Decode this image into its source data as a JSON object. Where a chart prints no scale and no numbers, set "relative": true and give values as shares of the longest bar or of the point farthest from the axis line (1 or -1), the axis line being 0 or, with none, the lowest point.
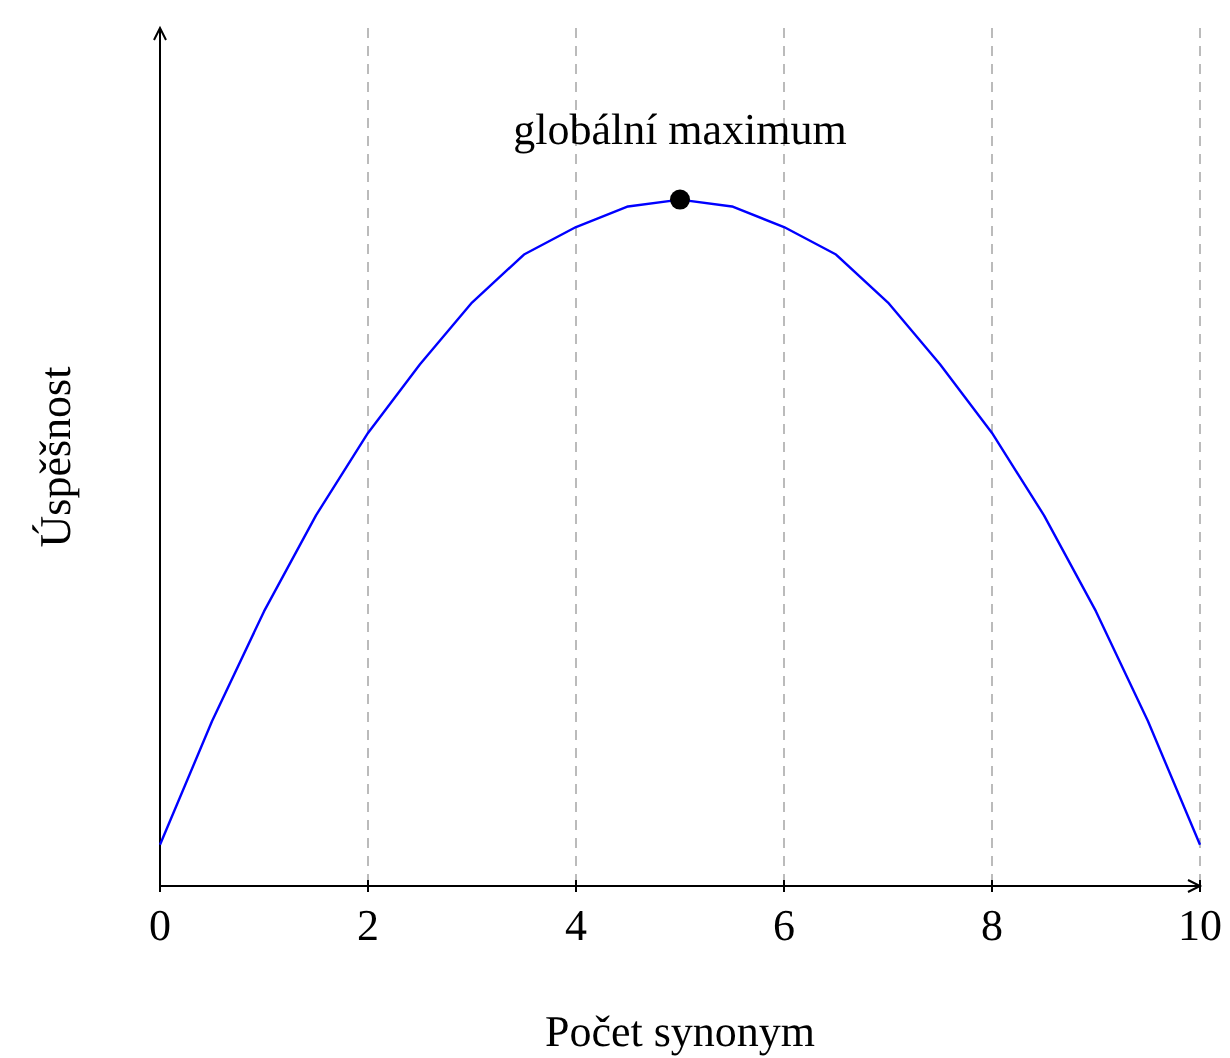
{
  "chart_data": {
    "type": "line",
    "xlabel": "Počet synonym",
    "ylabel": "Úspěšnost",
    "relative": true,
    "xlim": [
      0,
      10
    ],
    "xticks": [
      0,
      2,
      4,
      6,
      8,
      10
    ],
    "grid": "x",
    "annotations": [
      {
        "text": "globální maximum",
        "x": 5,
        "y": 1
      }
    ],
    "series": [
      {
        "color": "#0000ff",
        "marker": "none",
        "x": [
          0,
          0.5,
          1,
          1.5,
          2,
          2.5,
          3,
          3.5,
          4,
          4.5,
          5,
          5.5,
          6,
          6.5,
          7,
          7.5,
          8,
          8.5,
          9,
          9.5,
          10
        ],
        "values": [
          0.06,
          0.24,
          0.4,
          0.54,
          0.66,
          0.76,
          0.85,
          0.92,
          0.96,
          0.99,
          1,
          0.99,
          0.96,
          0.92,
          0.85,
          0.76,
          0.66,
          0.54,
          0.4,
          0.24,
          0.06
        ]
      },
      {
        "type": "scatter",
        "color": "#000000",
        "marker": "circle",
        "x": [
          5
        ],
        "values": [
          1
        ]
      }
    ]
  }
}
